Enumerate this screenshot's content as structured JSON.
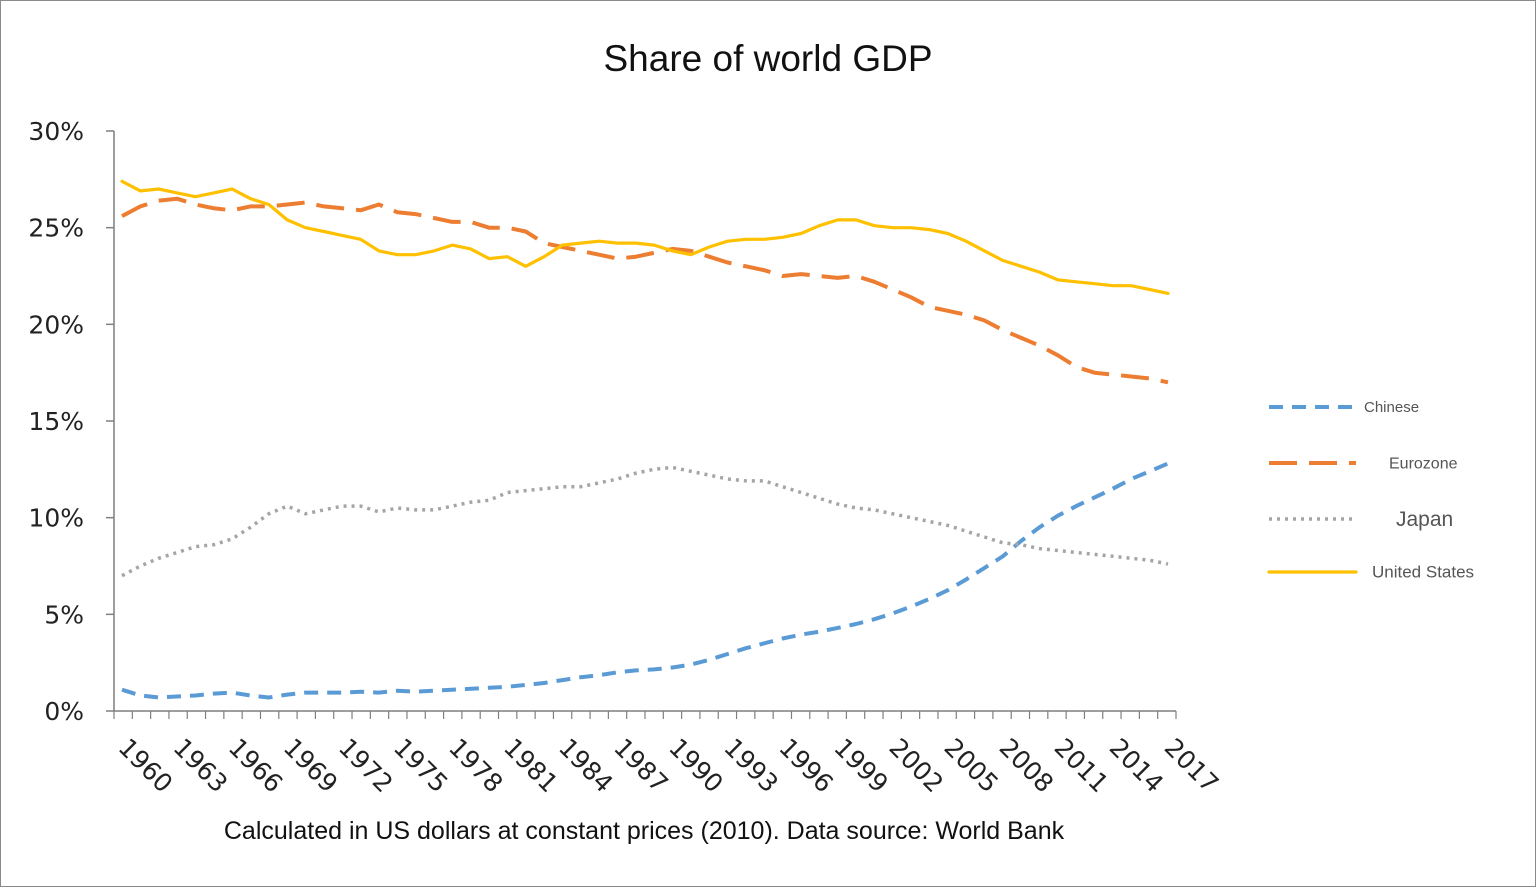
{
  "colors": {
    "chinese": "#5b9bd5",
    "eurozone": "#ed7d31",
    "japan": "#a5a5a5",
    "united_states": "#ffc000",
    "axis": "#7f7f7f"
  },
  "chart_data": {
    "type": "line",
    "title": "Share of world GDP",
    "caption": "Calculated in US dollars at constant prices (2010). Data source: World Bank",
    "xlabel": "",
    "ylabel": "",
    "ylim": [
      0,
      30
    ],
    "y_ticks": [
      "0%",
      "5%",
      "10%",
      "15%",
      "20%",
      "25%",
      "30%"
    ],
    "x_tick_labels": [
      "1960",
      "1963",
      "1966",
      "1969",
      "1972",
      "1975",
      "1978",
      "1981",
      "1984",
      "1987",
      "1990",
      "1993",
      "1996",
      "1999",
      "2002",
      "2005",
      "2008",
      "2011",
      "2014",
      "2017"
    ],
    "grid": false,
    "legend_position": "right",
    "x": [
      1960,
      1961,
      1962,
      1963,
      1964,
      1965,
      1966,
      1967,
      1968,
      1969,
      1970,
      1971,
      1972,
      1973,
      1974,
      1975,
      1976,
      1977,
      1978,
      1979,
      1980,
      1981,
      1982,
      1983,
      1984,
      1985,
      1986,
      1987,
      1988,
      1989,
      1990,
      1991,
      1992,
      1993,
      1994,
      1995,
      1996,
      1997,
      1998,
      1999,
      2000,
      2001,
      2002,
      2003,
      2004,
      2005,
      2006,
      2007,
      2008,
      2009,
      2010,
      2011,
      2012,
      2013,
      2014,
      2015,
      2016,
      2017
    ],
    "series": [
      {
        "name": "Chinese",
        "key": "chinese",
        "style": "dashed",
        "values": [
          1.1,
          0.8,
          0.7,
          0.75,
          0.8,
          0.9,
          0.95,
          0.8,
          0.7,
          0.85,
          0.95,
          0.95,
          0.95,
          1.0,
          0.95,
          1.05,
          1.0,
          1.05,
          1.1,
          1.15,
          1.2,
          1.25,
          1.35,
          1.45,
          1.6,
          1.75,
          1.85,
          2.0,
          2.1,
          2.15,
          2.25,
          2.4,
          2.65,
          2.95,
          3.25,
          3.5,
          3.75,
          3.95,
          4.1,
          4.3,
          4.5,
          4.75,
          5.05,
          5.4,
          5.8,
          6.25,
          6.8,
          7.4,
          8.0,
          8.8,
          9.5,
          10.1,
          10.6,
          11.05,
          11.5,
          12.0,
          12.4,
          12.8
        ]
      },
      {
        "name": "Eurozone",
        "key": "eurozone",
        "style": "long-dashed",
        "values": [
          25.6,
          26.1,
          26.4,
          26.5,
          26.2,
          26.0,
          25.9,
          26.1,
          26.1,
          26.2,
          26.3,
          26.1,
          26.0,
          25.9,
          26.2,
          25.8,
          25.7,
          25.5,
          25.3,
          25.3,
          25.0,
          25.0,
          24.8,
          24.2,
          24.0,
          23.8,
          23.6,
          23.4,
          23.5,
          23.7,
          23.9,
          23.8,
          23.5,
          23.2,
          23.0,
          22.8,
          22.5,
          22.6,
          22.5,
          22.4,
          22.5,
          22.2,
          21.8,
          21.4,
          20.9,
          20.7,
          20.5,
          20.2,
          19.7,
          19.3,
          18.9,
          18.4,
          17.8,
          17.5,
          17.4,
          17.3,
          17.2,
          17.0
        ]
      },
      {
        "name": "Japan",
        "key": "japan",
        "style": "dotted",
        "values": [
          7.0,
          7.5,
          7.9,
          8.2,
          8.5,
          8.6,
          8.9,
          9.5,
          10.2,
          10.6,
          10.2,
          10.4,
          10.6,
          10.6,
          10.3,
          10.5,
          10.4,
          10.4,
          10.6,
          10.8,
          10.9,
          11.3,
          11.4,
          11.5,
          11.6,
          11.6,
          11.8,
          12.0,
          12.3,
          12.5,
          12.6,
          12.4,
          12.2,
          12.0,
          11.9,
          11.9,
          11.6,
          11.3,
          11.0,
          10.7,
          10.5,
          10.4,
          10.2,
          10.0,
          9.8,
          9.6,
          9.3,
          9.0,
          8.7,
          8.6,
          8.4,
          8.3,
          8.2,
          8.1,
          8.0,
          7.9,
          7.8,
          7.6
        ]
      },
      {
        "name": "United States",
        "key": "united_states",
        "style": "solid",
        "values": [
          27.4,
          26.9,
          27.0,
          26.8,
          26.6,
          26.8,
          27.0,
          26.5,
          26.2,
          25.4,
          25.0,
          24.8,
          24.6,
          24.4,
          23.8,
          23.6,
          23.6,
          23.8,
          24.1,
          23.9,
          23.4,
          23.5,
          23.0,
          23.5,
          24.1,
          24.2,
          24.3,
          24.2,
          24.2,
          24.1,
          23.8,
          23.6,
          24.0,
          24.3,
          24.4,
          24.4,
          24.5,
          24.7,
          25.1,
          25.4,
          25.4,
          25.1,
          25.0,
          25.0,
          24.9,
          24.7,
          24.3,
          23.8,
          23.3,
          23.0,
          22.7,
          22.3,
          22.2,
          22.1,
          22.0,
          22.0,
          21.8,
          21.6
        ]
      }
    ]
  }
}
